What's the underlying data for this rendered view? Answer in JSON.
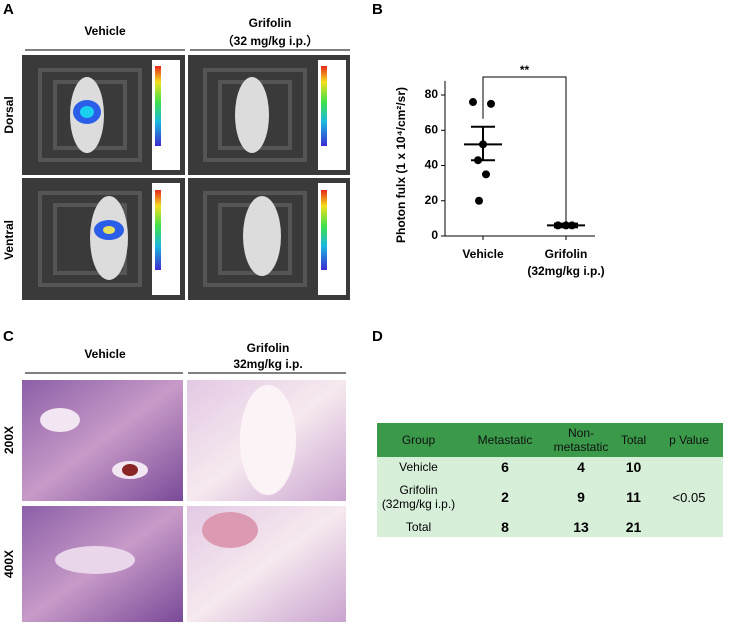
{
  "panel_a": {
    "label": "A",
    "columns": [
      {
        "title": "Vehicle"
      },
      {
        "title": "Grifolin",
        "subtitle": "（32 mg/kg i.p.）"
      }
    ],
    "rows": [
      "Dorsal",
      "Ventral"
    ]
  },
  "chart_data": {
    "type": "scatter",
    "label": "B",
    "y_label": "Photon fulx (1 x 10⁴/cm²/sr)",
    "categories": [
      "Vehicle",
      "Grifolin (32mg/kg i.p.)"
    ],
    "values": [
      [
        76,
        75,
        52,
        43,
        35,
        20
      ],
      [
        6,
        6,
        6
      ]
    ],
    "means": [
      52,
      6
    ],
    "upper": [
      62,
      7
    ],
    "lower": [
      43,
      5
    ],
    "annotation": "**",
    "color": "#000000",
    "ylim": [
      0,
      88
    ],
    "yticks": [
      0,
      20,
      40,
      60,
      80
    ]
  },
  "panel_c": {
    "label": "C",
    "columns": [
      {
        "title": "Vehicle"
      },
      {
        "title": "Grifolin",
        "subtitle": "32mg/kg i.p."
      }
    ],
    "rows": [
      "200X",
      "400X"
    ]
  },
  "panel_d": {
    "label": "D",
    "header": [
      "Group",
      "Metastatic",
      "Non-metastatic",
      "Total",
      "p Value"
    ],
    "rows": [
      [
        "Vehicle",
        6,
        4,
        10
      ],
      [
        "Grifolin (32mg/kg i.p.)",
        2,
        9,
        11
      ],
      [
        "Total",
        8,
        13,
        21
      ]
    ],
    "p_value": "<0.05"
  }
}
